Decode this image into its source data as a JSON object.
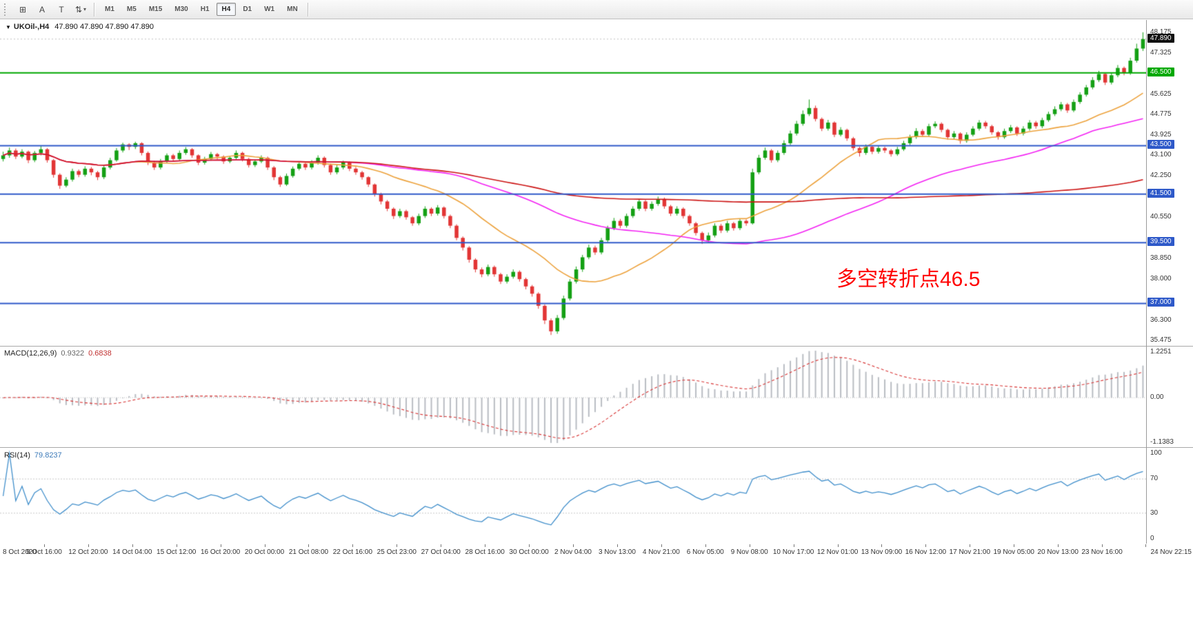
{
  "toolbar": {
    "tools": [
      {
        "name": "charts-grid-icon",
        "glyph": "⊞"
      },
      {
        "name": "cursor-tool-icon",
        "glyph": "A"
      },
      {
        "name": "text-tool-icon",
        "glyph": "T"
      },
      {
        "name": "drawing-tools-icon",
        "glyph": "⇅",
        "caret": "▾"
      }
    ],
    "timeframes": [
      "M1",
      "M5",
      "M15",
      "M30",
      "H1",
      "H4",
      "D1",
      "W1",
      "MN"
    ],
    "active_timeframe": "H4"
  },
  "chart_data": {
    "type": "candlestick",
    "symbol": "UKOil-",
    "timeframe": "H4",
    "symbol_label": "UKOil-,H4",
    "ohlc_text": "47.890 47.890 47.890 47.890",
    "current_price": {
      "value": 47.89,
      "label": "47.890",
      "color": "#111111"
    },
    "ylim": [
      35.3,
      48.45
    ],
    "price_axis": {
      "labels": [
        "48.175",
        "47.325",
        "45.625",
        "44.775",
        "43.925",
        "43.100",
        "42.250",
        "40.550",
        "38.850",
        "38.000",
        "36.300",
        "35.475"
      ]
    },
    "hlines": [
      {
        "value": 46.5,
        "label": "46.500",
        "color": "#00a800"
      },
      {
        "value": 43.5,
        "label": "43.500",
        "color": "#2e59c9"
      },
      {
        "value": 41.5,
        "label": "41.500",
        "color": "#2e59c9"
      },
      {
        "value": 39.5,
        "label": "39.500",
        "color": "#2e59c9"
      },
      {
        "value": 37.0,
        "label": "37.000",
        "color": "#2e59c9"
      }
    ],
    "candle_colors": {
      "up": "#14a014",
      "down": "#e23535"
    },
    "moving_averages": [
      {
        "name": "MA21",
        "period": 21,
        "color": "#eda23c"
      },
      {
        "name": "MA55",
        "period": 55,
        "color": "#f321f3"
      },
      {
        "name": "MA120",
        "period": 120,
        "color": "#cc1414"
      }
    ],
    "annotation": {
      "text": "多空转折点46.5",
      "color": "#ff0000"
    },
    "indicators": {
      "macd": {
        "label": "MACD(12,26,9)",
        "value_main": "0.9322",
        "value_signal": "0.6838",
        "fast": 12,
        "slow": 26,
        "signal_period": 9,
        "hist_color": "#b9bdc3",
        "signal_color": "#d83232",
        "axis": {
          "max": "1.2251",
          "zero": "0.00",
          "min": "-1.1383"
        }
      },
      "rsi": {
        "label": "RSI(14)",
        "value": "79.8237",
        "period": 14,
        "color": "#3f8ecb",
        "levels": [
          70,
          30
        ],
        "axis": {
          "top": "100",
          "upper": "70",
          "lower": "30",
          "bottom": "0"
        }
      }
    },
    "x_labels": [
      "8 Oct 2020",
      "9 Oct 16:00",
      "12 Oct 20:00",
      "14 Oct 04:00",
      "15 Oct 12:00",
      "16 Oct 20:00",
      "20 Oct 00:00",
      "21 Oct 08:00",
      "22 Oct 16:00",
      "25 Oct 23:00",
      "27 Oct 04:00",
      "28 Oct 16:00",
      "30 Oct 00:00",
      "2 Nov 04:00",
      "3 Nov 13:00",
      "4 Nov 21:00",
      "6 Nov 05:00",
      "9 Nov 08:00",
      "10 Nov 17:00",
      "12 Nov 01:00",
      "13 Nov 09:00",
      "16 Nov 12:00",
      "17 Nov 21:00",
      "19 Nov 05:00",
      "20 Nov 13:00",
      "23 Nov 16:00",
      "24 Nov 22:15"
    ],
    "candles": [
      [
        42.95,
        43.25,
        42.85,
        43.1
      ],
      [
        43.1,
        43.42,
        43.0,
        43.3
      ],
      [
        43.3,
        43.38,
        42.95,
        43.05
      ],
      [
        43.05,
        43.35,
        42.98,
        43.25
      ],
      [
        43.25,
        43.3,
        42.78,
        42.9
      ],
      [
        42.9,
        43.28,
        42.82,
        43.2
      ],
      [
        43.2,
        43.48,
        43.1,
        43.35
      ],
      [
        43.35,
        43.4,
        42.8,
        42.9
      ],
      [
        42.9,
        42.95,
        42.18,
        42.3
      ],
      [
        42.3,
        42.36,
        41.72,
        41.85
      ],
      [
        41.85,
        42.2,
        41.78,
        42.1
      ],
      [
        42.1,
        42.55,
        42.02,
        42.45
      ],
      [
        42.45,
        42.52,
        42.2,
        42.3
      ],
      [
        42.3,
        42.65,
        42.22,
        42.55
      ],
      [
        42.55,
        42.62,
        42.28,
        42.4
      ],
      [
        42.4,
        42.46,
        42.08,
        42.2
      ],
      [
        42.2,
        42.7,
        42.12,
        42.6
      ],
      [
        42.6,
        43.0,
        42.52,
        42.9
      ],
      [
        42.9,
        43.4,
        42.84,
        43.3
      ],
      [
        43.3,
        43.62,
        43.22,
        43.55
      ],
      [
        43.55,
        43.6,
        43.32,
        43.45
      ],
      [
        43.45,
        43.66,
        43.36,
        43.6
      ],
      [
        43.6,
        43.64,
        43.1,
        43.2
      ],
      [
        43.2,
        43.26,
        42.7,
        42.8
      ],
      [
        42.8,
        42.88,
        42.5,
        42.6
      ],
      [
        42.6,
        42.95,
        42.52,
        42.85
      ],
      [
        42.85,
        43.18,
        42.78,
        43.1
      ],
      [
        43.1,
        43.16,
        42.85,
        42.95
      ],
      [
        42.95,
        43.3,
        42.88,
        43.2
      ],
      [
        43.2,
        43.44,
        43.12,
        43.35
      ],
      [
        43.35,
        43.4,
        43.0,
        43.1
      ],
      [
        43.1,
        43.14,
        42.7,
        42.8
      ],
      [
        42.8,
        43.04,
        42.72,
        42.95
      ],
      [
        42.95,
        43.24,
        42.88,
        43.15
      ],
      [
        43.15,
        43.2,
        42.94,
        43.05
      ],
      [
        43.05,
        43.1,
        42.75,
        42.85
      ],
      [
        42.85,
        43.08,
        42.78,
        43.0
      ],
      [
        43.0,
        43.3,
        42.92,
        43.2
      ],
      [
        43.2,
        43.25,
        42.85,
        42.95
      ],
      [
        42.95,
        43.0,
        42.6,
        42.7
      ],
      [
        42.7,
        42.94,
        42.62,
        42.85
      ],
      [
        42.85,
        43.1,
        42.78,
        43.0
      ],
      [
        43.0,
        43.05,
        42.5,
        42.6
      ],
      [
        42.6,
        42.66,
        42.08,
        42.2
      ],
      [
        42.2,
        42.26,
        41.8,
        41.9
      ],
      [
        41.9,
        42.35,
        41.84,
        42.25
      ],
      [
        42.25,
        42.64,
        42.18,
        42.55
      ],
      [
        42.55,
        42.85,
        42.48,
        42.75
      ],
      [
        42.75,
        42.82,
        42.5,
        42.6
      ],
      [
        42.6,
        42.9,
        42.52,
        42.8
      ],
      [
        42.8,
        43.1,
        42.72,
        43.0
      ],
      [
        43.0,
        43.06,
        42.6,
        42.7
      ],
      [
        42.7,
        42.76,
        42.3,
        42.4
      ],
      [
        42.4,
        42.7,
        42.32,
        42.6
      ],
      [
        42.6,
        42.88,
        42.52,
        42.8
      ],
      [
        42.8,
        42.85,
        42.45,
        42.55
      ],
      [
        42.55,
        42.62,
        42.3,
        42.4
      ],
      [
        42.4,
        42.46,
        42.1,
        42.2
      ],
      [
        42.2,
        42.24,
        41.8,
        41.9
      ],
      [
        41.9,
        41.94,
        41.4,
        41.5
      ],
      [
        41.5,
        41.56,
        41.08,
        41.2
      ],
      [
        41.2,
        41.26,
        40.8,
        40.9
      ],
      [
        40.9,
        40.96,
        40.48,
        40.6
      ],
      [
        40.6,
        40.9,
        40.52,
        40.8
      ],
      [
        40.8,
        40.86,
        40.45,
        40.55
      ],
      [
        40.55,
        40.6,
        40.2,
        40.3
      ],
      [
        40.3,
        40.7,
        40.22,
        40.6
      ],
      [
        40.6,
        41.0,
        40.52,
        40.9
      ],
      [
        40.9,
        40.96,
        40.6,
        40.7
      ],
      [
        40.7,
        41.05,
        40.62,
        40.95
      ],
      [
        40.95,
        41.0,
        40.5,
        40.6
      ],
      [
        40.6,
        40.66,
        40.1,
        40.2
      ],
      [
        40.2,
        40.26,
        39.6,
        39.7
      ],
      [
        39.7,
        39.76,
        39.18,
        39.3
      ],
      [
        39.3,
        39.36,
        38.68,
        38.8
      ],
      [
        38.8,
        38.86,
        38.28,
        38.4
      ],
      [
        38.4,
        38.48,
        38.08,
        38.2
      ],
      [
        38.2,
        38.6,
        38.12,
        38.5
      ],
      [
        38.5,
        38.56,
        38.1,
        38.2
      ],
      [
        38.2,
        38.26,
        37.8,
        37.9
      ],
      [
        37.9,
        38.2,
        37.82,
        38.1
      ],
      [
        38.1,
        38.4,
        38.02,
        38.3
      ],
      [
        38.3,
        38.36,
        37.9,
        38.0
      ],
      [
        38.0,
        38.06,
        37.58,
        37.7
      ],
      [
        37.7,
        37.76,
        37.28,
        37.4
      ],
      [
        37.4,
        37.46,
        36.78,
        36.9
      ],
      [
        36.9,
        36.96,
        36.15,
        36.3
      ],
      [
        36.3,
        36.38,
        35.7,
        35.85
      ],
      [
        35.85,
        36.52,
        35.75,
        36.4
      ],
      [
        36.4,
        37.32,
        36.32,
        37.2
      ],
      [
        37.2,
        38.0,
        37.12,
        37.9
      ],
      [
        37.9,
        38.52,
        37.82,
        38.4
      ],
      [
        38.4,
        39.0,
        38.3,
        38.9
      ],
      [
        38.9,
        39.42,
        38.82,
        39.3
      ],
      [
        39.3,
        39.38,
        39.0,
        39.1
      ],
      [
        39.1,
        39.7,
        39.02,
        39.6
      ],
      [
        39.6,
        40.2,
        39.52,
        40.1
      ],
      [
        40.1,
        40.52,
        40.02,
        40.4
      ],
      [
        40.4,
        40.48,
        40.1,
        40.2
      ],
      [
        40.2,
        40.7,
        40.12,
        40.6
      ],
      [
        40.6,
        41.0,
        40.52,
        40.9
      ],
      [
        40.9,
        41.3,
        40.82,
        41.2
      ],
      [
        41.2,
        41.26,
        40.8,
        40.9
      ],
      [
        40.9,
        41.2,
        40.82,
        41.1
      ],
      [
        41.1,
        41.4,
        41.02,
        41.3
      ],
      [
        41.3,
        41.36,
        40.9,
        41.0
      ],
      [
        41.0,
        41.06,
        40.6,
        40.7
      ],
      [
        40.7,
        41.0,
        40.62,
        40.9
      ],
      [
        40.9,
        40.96,
        40.5,
        40.6
      ],
      [
        40.6,
        40.66,
        40.2,
        40.3
      ],
      [
        40.3,
        40.36,
        39.8,
        39.9
      ],
      [
        39.9,
        39.96,
        39.45,
        39.6
      ],
      [
        39.6,
        39.92,
        39.5,
        39.8
      ],
      [
        39.8,
        40.3,
        39.72,
        40.2
      ],
      [
        40.2,
        40.28,
        39.9,
        40.0
      ],
      [
        40.0,
        40.4,
        39.92,
        40.3
      ],
      [
        40.3,
        40.36,
        40.0,
        40.1
      ],
      [
        40.1,
        40.5,
        40.02,
        40.4
      ],
      [
        40.4,
        40.46,
        40.2,
        40.3
      ],
      [
        40.3,
        42.55,
        40.25,
        42.4
      ],
      [
        42.4,
        43.12,
        42.32,
        43.0
      ],
      [
        43.0,
        43.42,
        42.92,
        43.3
      ],
      [
        43.3,
        43.36,
        42.8,
        42.9
      ],
      [
        42.9,
        43.3,
        42.82,
        43.2
      ],
      [
        43.2,
        43.72,
        43.12,
        43.6
      ],
      [
        43.6,
        44.12,
        43.52,
        44.0
      ],
      [
        44.0,
        44.52,
        43.92,
        44.4
      ],
      [
        44.4,
        44.95,
        44.32,
        44.8
      ],
      [
        44.8,
        45.4,
        44.72,
        45.05
      ],
      [
        45.05,
        45.15,
        44.5,
        44.6
      ],
      [
        44.6,
        44.66,
        44.1,
        44.2
      ],
      [
        44.2,
        44.56,
        44.12,
        44.45
      ],
      [
        44.45,
        44.5,
        43.85,
        43.95
      ],
      [
        43.95,
        44.26,
        43.88,
        44.15
      ],
      [
        44.15,
        44.2,
        43.7,
        43.8
      ],
      [
        43.8,
        43.86,
        43.3,
        43.4
      ],
      [
        43.4,
        43.46,
        43.05,
        43.2
      ],
      [
        43.2,
        43.55,
        43.12,
        43.45
      ],
      [
        43.45,
        43.5,
        43.15,
        43.25
      ],
      [
        43.25,
        43.5,
        43.17,
        43.4
      ],
      [
        43.4,
        43.46,
        43.2,
        43.3
      ],
      [
        43.3,
        43.36,
        43.05,
        43.15
      ],
      [
        43.15,
        43.45,
        43.08,
        43.35
      ],
      [
        43.35,
        43.7,
        43.28,
        43.6
      ],
      [
        43.6,
        43.95,
        43.52,
        43.85
      ],
      [
        43.85,
        44.22,
        43.78,
        44.1
      ],
      [
        44.1,
        44.18,
        43.85,
        43.95
      ],
      [
        43.95,
        44.4,
        43.88,
        44.3
      ],
      [
        44.3,
        44.5,
        44.22,
        44.4
      ],
      [
        44.4,
        44.46,
        44.05,
        44.15
      ],
      [
        44.15,
        44.2,
        43.75,
        43.85
      ],
      [
        43.85,
        44.1,
        43.76,
        44.0
      ],
      [
        44.0,
        44.05,
        43.58,
        43.7
      ],
      [
        43.7,
        44.05,
        43.62,
        43.95
      ],
      [
        43.95,
        44.3,
        43.88,
        44.2
      ],
      [
        44.2,
        44.55,
        44.12,
        44.45
      ],
      [
        44.45,
        44.52,
        44.2,
        44.3
      ],
      [
        44.3,
        44.36,
        43.95,
        44.05
      ],
      [
        44.05,
        44.1,
        43.75,
        43.85
      ],
      [
        43.85,
        44.2,
        43.78,
        44.1
      ],
      [
        44.1,
        44.35,
        44.02,
        44.25
      ],
      [
        44.25,
        44.3,
        43.9,
        44.0
      ],
      [
        44.0,
        44.3,
        43.92,
        44.2
      ],
      [
        44.2,
        44.55,
        44.12,
        44.45
      ],
      [
        44.45,
        44.52,
        44.2,
        44.3
      ],
      [
        44.3,
        44.65,
        44.22,
        44.55
      ],
      [
        44.55,
        44.9,
        44.48,
        44.8
      ],
      [
        44.8,
        45.12,
        44.72,
        45.0
      ],
      [
        45.0,
        45.3,
        44.92,
        45.2
      ],
      [
        45.2,
        45.26,
        44.85,
        44.95
      ],
      [
        44.95,
        45.4,
        44.88,
        45.3
      ],
      [
        45.3,
        45.7,
        45.22,
        45.6
      ],
      [
        45.6,
        46.0,
        45.52,
        45.9
      ],
      [
        45.9,
        46.32,
        45.82,
        46.2
      ],
      [
        46.2,
        46.58,
        46.12,
        46.45
      ],
      [
        46.45,
        46.52,
        46.0,
        46.1
      ],
      [
        46.1,
        46.52,
        46.02,
        46.4
      ],
      [
        46.4,
        46.82,
        46.32,
        46.7
      ],
      [
        46.7,
        46.76,
        46.4,
        46.5
      ],
      [
        46.5,
        47.12,
        46.42,
        47.0
      ],
      [
        47.0,
        47.7,
        46.92,
        47.5
      ],
      [
        47.5,
        48.17,
        47.4,
        47.89
      ]
    ]
  }
}
